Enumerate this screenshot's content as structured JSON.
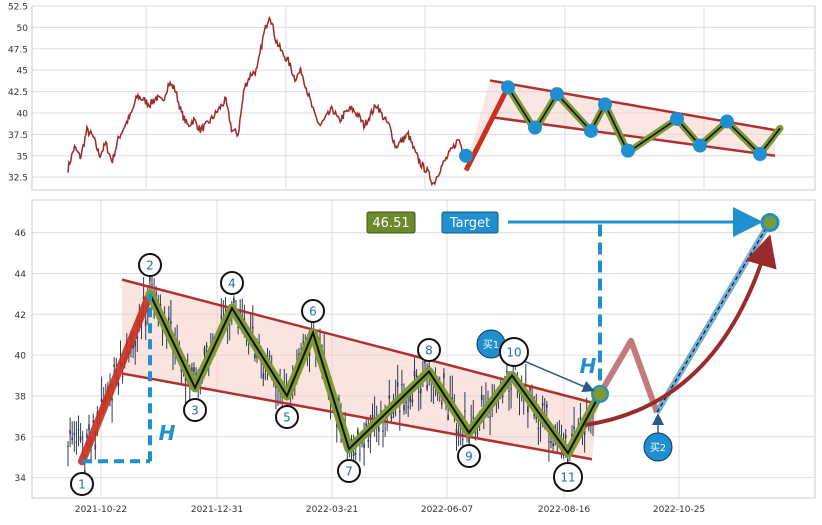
{
  "chart_data": [
    {
      "id": "overview",
      "type": "line",
      "ylim": [
        31,
        52.5
      ],
      "yticks": [
        32.5,
        35.0,
        37.5,
        40.0,
        42.5,
        45.0,
        47.5,
        50.0,
        52.5
      ],
      "grid": true,
      "colors": {
        "price": "#9b2a2a",
        "channel": "#b03030",
        "zigzag": "#7d9a36",
        "pivot": "#1f8fd0"
      },
      "series": [
        {
          "values": [
            33.5,
            36.0,
            34.8,
            38.0,
            37.2,
            35.0,
            36.4,
            34.3,
            37.0,
            38.5,
            39.8,
            42.0,
            41.5,
            41.0,
            41.8,
            41.3,
            43.5,
            42.8,
            40.0,
            38.5,
            39.2,
            38.0,
            38.6,
            39.5,
            40.5,
            41.5,
            38.0,
            37.5,
            43.0,
            44.5,
            45.0,
            49.0,
            51.6,
            48.5,
            47.0,
            46.0,
            44.0,
            45.0,
            42.5,
            40.0,
            38.5,
            39.5,
            40.5,
            39.0,
            40.0,
            40.5,
            39.8,
            38.5,
            39.8,
            41.0,
            39.5,
            38.5,
            36.0,
            36.8,
            37.5,
            35.5,
            34.0,
            33.2,
            31.7,
            33.4,
            34.6,
            35.8,
            37.0,
            34.9
          ]
        }
      ],
      "zigzag": [
        33.3,
        43.0,
        38.0,
        42.2,
        37.9,
        41.0,
        35.4,
        39.3,
        36.2,
        39.0,
        35.2,
        38.2
      ],
      "pivots": [
        35.0,
        43.0,
        38.3,
        42.2,
        37.9,
        41.0,
        35.6,
        39.3,
        36.2,
        39.0,
        35.2
      ]
    },
    {
      "id": "pattern",
      "type": "line",
      "ylim": [
        33,
        47.6
      ],
      "yticks": [
        34,
        36,
        38,
        40,
        42,
        44,
        46
      ],
      "xticks": [
        "2021-10-22",
        "2021-12-31",
        "2022-03-21",
        "2022-06-07",
        "2022-08-16",
        "2022-10-25"
      ],
      "grid": true,
      "colors": {
        "candles": "#2e3a55",
        "channel": "#b03030",
        "zigzag": "#7d9a36",
        "marker": "#1f8fd0",
        "arrow": "#9b2a2a"
      },
      "zigzag_points": [
        {
          "label": "1",
          "value": 34.8
        },
        {
          "label": "2",
          "value": 43.0
        },
        {
          "label": "3",
          "value": 38.4
        },
        {
          "label": "4",
          "value": 42.3
        },
        {
          "label": "5",
          "value": 38.0
        },
        {
          "label": "6",
          "value": 41.1
        },
        {
          "label": "7",
          "value": 35.4
        },
        {
          "label": "8",
          "value": 39.2
        },
        {
          "label": "9",
          "value": 36.2
        },
        {
          "label": "10",
          "value": 39.0
        },
        {
          "label": "11",
          "value": 35.2
        }
      ],
      "breakout_value": 38.1,
      "target_value": 46.5,
      "projection_values": [
        38.1,
        40.7,
        37.2
      ],
      "h_label": "H",
      "target_label": "Target",
      "target_value_label": "46.51",
      "buy1_label": "买1",
      "buy2_label": "买2"
    }
  ]
}
